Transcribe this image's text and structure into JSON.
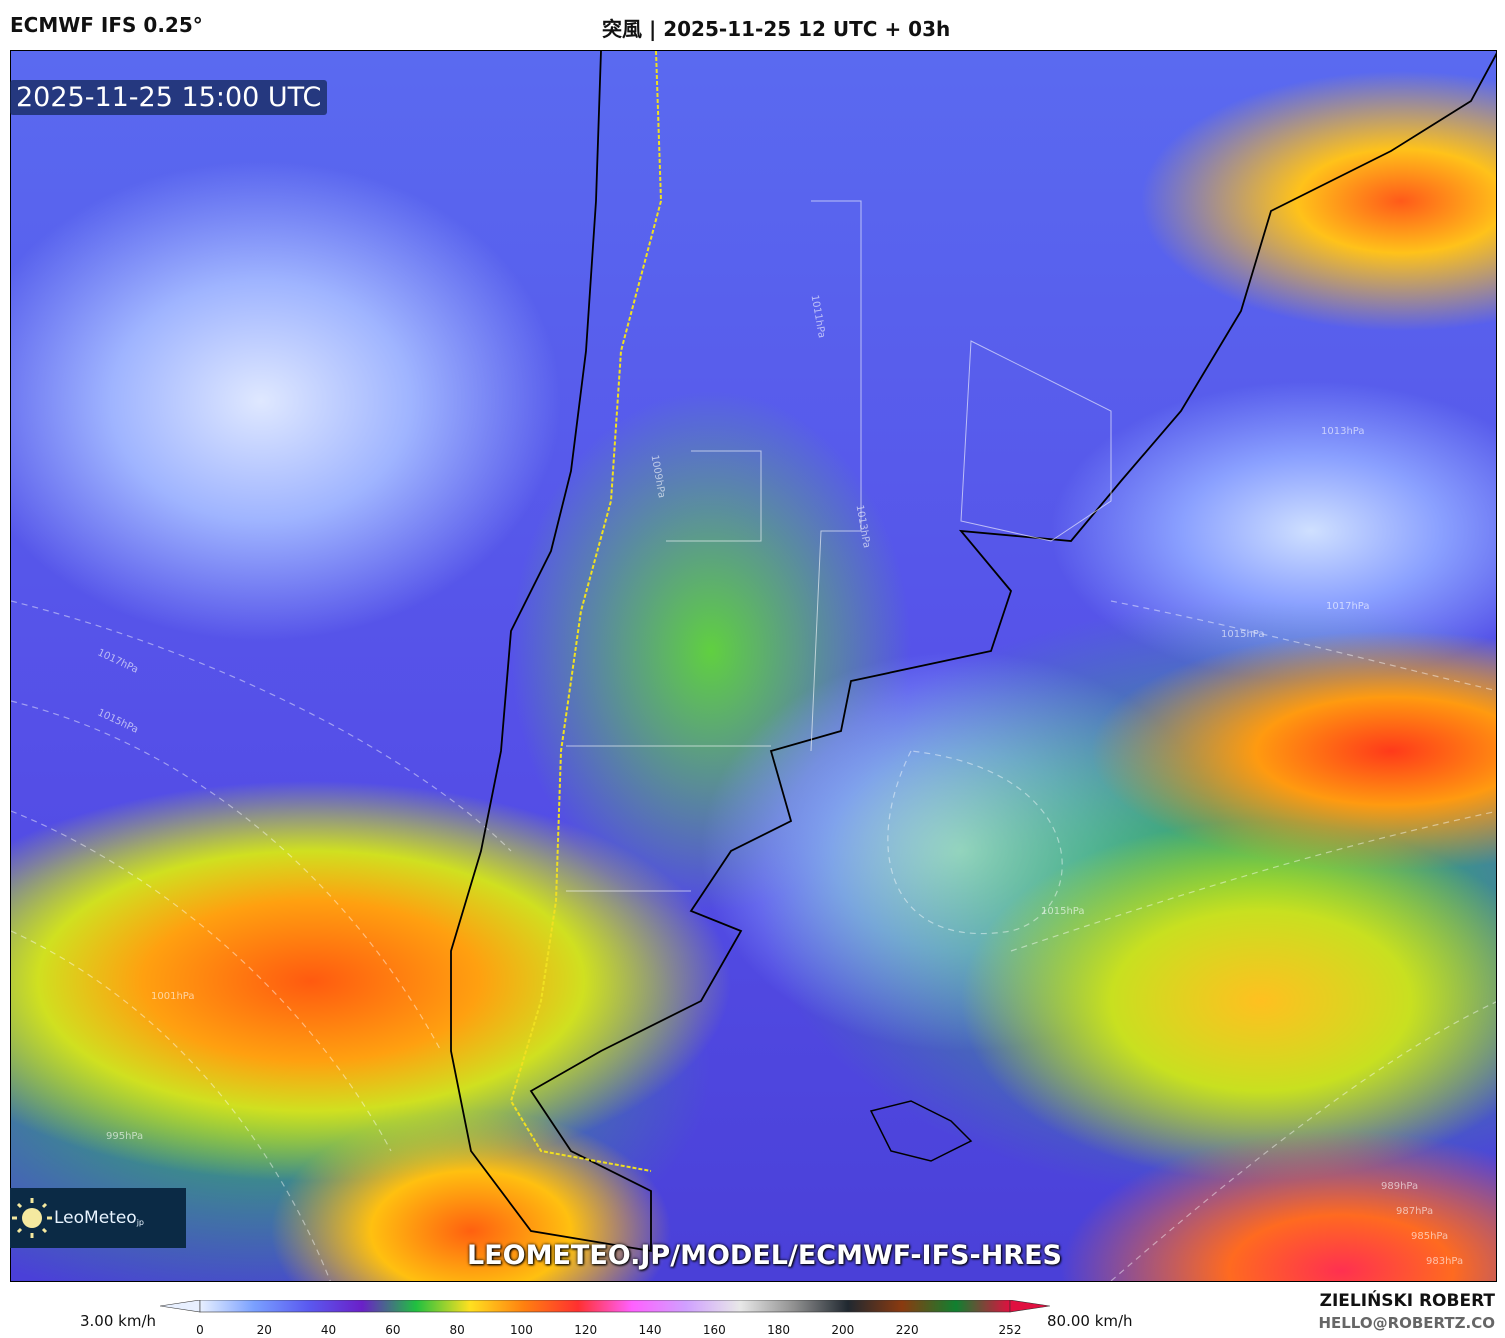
{
  "header": {
    "model": "ECMWF IFS 0.25°",
    "title": "突風 | 2025-11-25 12 UTC + 03h"
  },
  "map": {
    "valid_time": "2025-11-25 15:00 UTC",
    "url": "LEOMETEO.JP/MODEL/ECMWF-IFS-HRES",
    "logo": {
      "name": "LeoMeteo",
      "suffix": "jp"
    },
    "isobar_labels": [
      "1017hPa",
      "1015hPa",
      "1013hPa",
      "1011hPa",
      "1009hPa",
      "1001hPa",
      "995hPa",
      "1017hPa",
      "1015hPa",
      "1013hPa",
      "1015hPa",
      "989hPa",
      "987hPa",
      "985hPa",
      "983hPa"
    ]
  },
  "colorbar": {
    "min_label": "3.00 km/h",
    "max_label": "80.00 km/h",
    "ticks": [
      "0",
      "20",
      "40",
      "60",
      "80",
      "100",
      "120",
      "140",
      "160",
      "180",
      "200",
      "220",
      "252"
    ],
    "colors": [
      "#e8f0ff",
      "#7aa0ff",
      "#5a5af0",
      "#6a20c8",
      "#20c040",
      "#ffe020",
      "#ff8010",
      "#ff3030",
      "#ff60ff",
      "#d0a0ff",
      "#e8e8e8",
      "#909090",
      "#202830",
      "#8a3a10",
      "#108030",
      "#e01040"
    ]
  },
  "credit": {
    "author": "ZIELIŃSKI ROBERT",
    "email": "HELLO@ROBERTZ.CO"
  }
}
